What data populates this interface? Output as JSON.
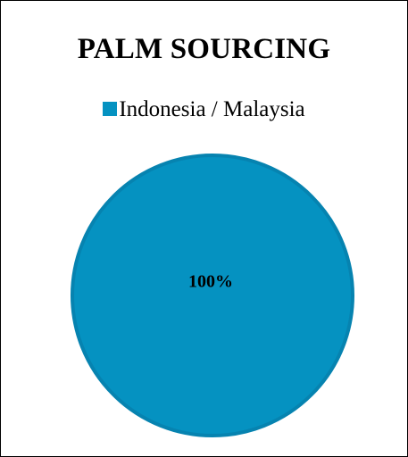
{
  "chart_data": {
    "type": "pie",
    "title": "PALM SOURCING",
    "categories": [
      "Indonesia / Malaysia"
    ],
    "values": [
      100
    ],
    "data_labels": [
      "100%"
    ],
    "legend_placement": "top",
    "colors": {
      "slice": "#0592C1",
      "slice_edge": "#0683B0",
      "label_text": "#000000"
    }
  }
}
